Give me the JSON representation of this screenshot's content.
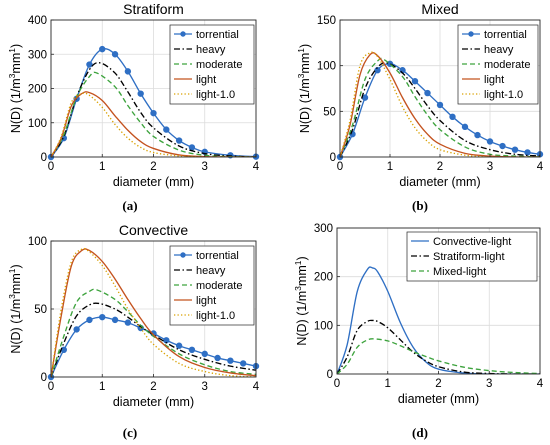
{
  "figure": {
    "panel_labels": [
      "(a)",
      "(b)",
      "(c)",
      "(d)"
    ]
  },
  "series_styles": {
    "torrential": {
      "color": "#2f6fc4",
      "dash": "solid",
      "marker": "circle"
    },
    "heavy": {
      "color": "#000000",
      "dash": "dashdot",
      "marker": "none"
    },
    "moderate": {
      "color": "#3da33d",
      "dash": "dashed",
      "marker": "none"
    },
    "light": {
      "color": "#c4531f",
      "dash": "solid",
      "marker": "none"
    },
    "light-1.0": {
      "color": "#d9a100",
      "dash": "dotted",
      "marker": "none"
    },
    "Convective-light": {
      "color": "#2f6fc4",
      "dash": "solid",
      "marker": "none"
    },
    "Stratiform-light": {
      "color": "#000000",
      "dash": "dashdot",
      "marker": "none"
    },
    "Mixed-light": {
      "color": "#3da33d",
      "dash": "dashed",
      "marker": "none"
    }
  },
  "chart_data": [
    {
      "type": "line",
      "title": "Stratiform",
      "xlabel": "diameter (mm)",
      "ylabel": "N(D) (1/m³mm¹)",
      "xlim": [
        0,
        4
      ],
      "ylim": [
        0,
        400
      ],
      "xticks": [
        0,
        1,
        2,
        3,
        4
      ],
      "yticks": [
        0,
        100,
        200,
        300,
        400
      ],
      "legend_position": "top-right",
      "grid": true,
      "series": [
        {
          "name": "torrential",
          "x": [
            0,
            0.25,
            0.5,
            0.75,
            1.0,
            1.25,
            1.5,
            1.75,
            2.0,
            2.25,
            2.5,
            2.75,
            3.0,
            3.5,
            4.0
          ],
          "y": [
            0,
            55,
            170,
            270,
            315,
            300,
            250,
            185,
            128,
            80,
            48,
            28,
            15,
            5,
            1
          ]
        },
        {
          "name": "heavy",
          "x": [
            0,
            0.25,
            0.5,
            0.75,
            0.95,
            1.25,
            1.5,
            1.75,
            2.0,
            2.5,
            3.0,
            3.5,
            4.0
          ],
          "y": [
            0,
            60,
            175,
            255,
            275,
            245,
            190,
            130,
            85,
            32,
            10,
            3,
            0
          ]
        },
        {
          "name": "moderate",
          "x": [
            0,
            0.25,
            0.5,
            0.75,
            0.9,
            1.25,
            1.5,
            1.75,
            2.0,
            2.5,
            3.0,
            3.5,
            4.0
          ],
          "y": [
            0,
            65,
            175,
            235,
            245,
            205,
            150,
            100,
            60,
            20,
            5,
            1,
            0
          ]
        },
        {
          "name": "light",
          "x": [
            0,
            0.2,
            0.4,
            0.6,
            0.75,
            1.0,
            1.25,
            1.5,
            1.75,
            2.0,
            2.5,
            3.0,
            3.5,
            4.0
          ],
          "y": [
            0,
            55,
            150,
            185,
            188,
            165,
            120,
            78,
            45,
            25,
            6,
            1,
            0,
            0
          ]
        },
        {
          "name": "light-1.0",
          "x": [
            0,
            0.2,
            0.4,
            0.6,
            0.75,
            1.0,
            1.25,
            1.5,
            1.75,
            2.0,
            2.5,
            3.0,
            3.5,
            4.0
          ],
          "y": [
            0,
            60,
            160,
            185,
            180,
            145,
            95,
            55,
            28,
            13,
            3,
            0,
            0,
            0
          ]
        }
      ]
    },
    {
      "type": "line",
      "title": "Mixed",
      "xlabel": "diameter (mm)",
      "ylabel": "N(D) (1/m³mm¹)",
      "xlim": [
        0,
        4
      ],
      "ylim": [
        0,
        150
      ],
      "xticks": [
        0,
        1,
        2,
        3,
        4
      ],
      "yticks": [
        0,
        50,
        100,
        150
      ],
      "legend_position": "top-right",
      "grid": true,
      "series": [
        {
          "name": "torrential",
          "x": [
            0,
            0.25,
            0.5,
            0.75,
            1.0,
            1.25,
            1.5,
            1.75,
            2.0,
            2.25,
            2.5,
            2.75,
            3.0,
            3.25,
            3.5,
            3.75,
            4.0
          ],
          "y": [
            0,
            25,
            65,
            95,
            102,
            95,
            83,
            70,
            57,
            44,
            33,
            24,
            17,
            12,
            8,
            5,
            3
          ]
        },
        {
          "name": "heavy",
          "x": [
            0,
            0.25,
            0.5,
            0.75,
            0.95,
            1.25,
            1.5,
            1.75,
            2.0,
            2.5,
            3.0,
            3.5,
            4.0
          ],
          "y": [
            0,
            30,
            75,
            98,
            103,
            92,
            75,
            56,
            40,
            18,
            8,
            3,
            1
          ]
        },
        {
          "name": "moderate",
          "x": [
            0,
            0.25,
            0.5,
            0.75,
            0.9,
            1.25,
            1.5,
            1.75,
            2.0,
            2.5,
            3.0,
            3.5,
            4.0
          ],
          "y": [
            0,
            35,
            85,
            105,
            106,
            88,
            66,
            46,
            30,
            11,
            3,
            1,
            0
          ]
        },
        {
          "name": "light",
          "x": [
            0,
            0.2,
            0.4,
            0.6,
            0.75,
            1.0,
            1.25,
            1.5,
            1.75,
            2.0,
            2.5,
            3.0,
            3.5,
            4.0
          ],
          "y": [
            0,
            35,
            90,
            112,
            111,
            92,
            65,
            42,
            25,
            14,
            4,
            1,
            0,
            0
          ]
        },
        {
          "name": "light-1.0",
          "x": [
            0,
            0.2,
            0.4,
            0.6,
            0.75,
            1.0,
            1.25,
            1.5,
            1.75,
            2.0,
            2.5,
            3.0,
            3.5,
            4.0
          ],
          "y": [
            0,
            40,
            100,
            114,
            110,
            85,
            55,
            32,
            17,
            8,
            2,
            0,
            0,
            0
          ]
        }
      ]
    },
    {
      "type": "line",
      "title": "Convective",
      "xlabel": "diameter (mm)",
      "ylabel": "N(D) (1/m³mm¹)",
      "xlim": [
        0,
        4
      ],
      "ylim": [
        0,
        100
      ],
      "xticks": [
        0,
        1,
        2,
        3,
        4
      ],
      "yticks": [
        0,
        50,
        100
      ],
      "legend_position": "top-right",
      "grid": true,
      "series": [
        {
          "name": "torrential",
          "x": [
            0,
            0.25,
            0.5,
            0.75,
            1.0,
            1.25,
            1.5,
            1.75,
            2.0,
            2.25,
            2.5,
            2.75,
            3.0,
            3.25,
            3.5,
            3.75,
            4.0
          ],
          "y": [
            0,
            20,
            35,
            42,
            44,
            42,
            40,
            36,
            32,
            27,
            23,
            20,
            17,
            14,
            12,
            10,
            8
          ]
        },
        {
          "name": "heavy",
          "x": [
            0,
            0.25,
            0.5,
            0.75,
            0.95,
            1.25,
            1.5,
            1.75,
            2.0,
            2.5,
            3.0,
            3.5,
            4.0
          ],
          "y": [
            0,
            25,
            45,
            53,
            54,
            50,
            44,
            37,
            31,
            20,
            13,
            8,
            5
          ]
        },
        {
          "name": "moderate",
          "x": [
            0,
            0.25,
            0.5,
            0.75,
            0.9,
            1.25,
            1.5,
            1.75,
            2.0,
            2.5,
            3.0,
            3.5,
            4.0
          ],
          "y": [
            0,
            30,
            55,
            63,
            64,
            57,
            48,
            38,
            30,
            17,
            9,
            4,
            2
          ]
        },
        {
          "name": "light",
          "x": [
            0,
            0.2,
            0.4,
            0.6,
            0.75,
            1.0,
            1.25,
            1.5,
            1.75,
            2.0,
            2.5,
            3.0,
            3.5,
            4.0
          ],
          "y": [
            0,
            45,
            82,
            93,
            93,
            85,
            72,
            57,
            43,
            31,
            15,
            7,
            3,
            1
          ]
        },
        {
          "name": "light-1.0",
          "x": [
            0,
            0.2,
            0.4,
            0.6,
            0.75,
            1.0,
            1.25,
            1.5,
            1.75,
            2.0,
            2.5,
            3.0,
            3.5,
            4.0
          ],
          "y": [
            0,
            50,
            85,
            94,
            92,
            82,
            67,
            50,
            36,
            24,
            10,
            4,
            1,
            0
          ]
        }
      ]
    },
    {
      "type": "line",
      "title": "",
      "xlabel": "diameter (mm)",
      "ylabel": "N(D) (1/m³mm¹)",
      "xlim": [
        0,
        4
      ],
      "ylim": [
        0,
        300
      ],
      "xticks": [
        0,
        1,
        2,
        3,
        4
      ],
      "yticks": [
        0,
        100,
        200,
        300
      ],
      "legend_position": "top-right",
      "grid": true,
      "series": [
        {
          "name": "Convective-light",
          "x": [
            0,
            0.2,
            0.4,
            0.6,
            0.7,
            0.8,
            1.0,
            1.25,
            1.5,
            1.75,
            2.0,
            2.5,
            3.0,
            3.5,
            4.0
          ],
          "y": [
            0,
            60,
            170,
            215,
            218,
            210,
            170,
            105,
            55,
            25,
            10,
            2,
            0,
            0,
            0
          ]
        },
        {
          "name": "Stratiform-light",
          "x": [
            0,
            0.2,
            0.4,
            0.6,
            0.7,
            0.8,
            1.0,
            1.25,
            1.5,
            1.75,
            2.0,
            2.5,
            3.0,
            3.5,
            4.0
          ],
          "y": [
            0,
            35,
            90,
            108,
            110,
            108,
            95,
            70,
            45,
            27,
            15,
            4,
            1,
            0,
            0
          ]
        },
        {
          "name": "Mixed-light",
          "x": [
            0,
            0.2,
            0.4,
            0.6,
            0.75,
            1.0,
            1.25,
            1.5,
            1.75,
            2.0,
            2.5,
            3.0,
            3.5,
            4.0
          ],
          "y": [
            0,
            20,
            55,
            70,
            72,
            68,
            58,
            46,
            36,
            27,
            14,
            7,
            3,
            1
          ]
        }
      ]
    }
  ]
}
